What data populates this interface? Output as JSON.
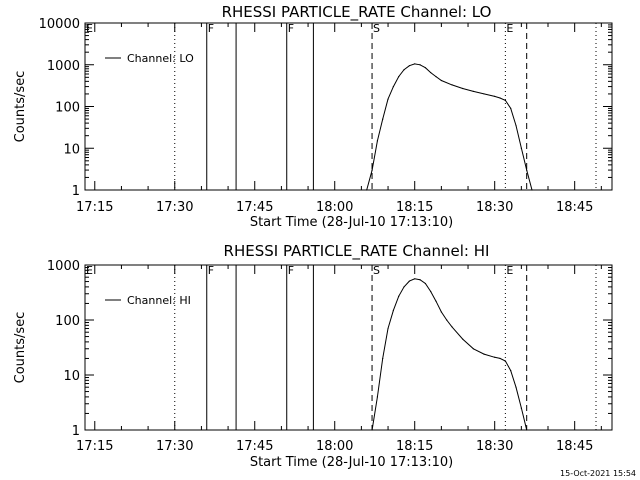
{
  "chart_data": [
    {
      "type": "line",
      "title": "RHESSI PARTICLE_RATE Channel: LO",
      "xlabel": "Start Time (28-Jul-10 17:13:10)",
      "ylabel": "Counts/sec",
      "y_scale": "log",
      "ylim": [
        1,
        10000
      ],
      "y_ticks": [
        "1",
        "10",
        "100",
        "1000",
        "10000"
      ],
      "x_ticks": [
        "17:15",
        "17:30",
        "17:45",
        "18:00",
        "18:15",
        "18:30",
        "18:45"
      ],
      "xlim": [
        "17:13:10",
        "18:52:00"
      ],
      "grid": false,
      "legend_position": "top-left",
      "series": [
        {
          "name": "Channel: LO",
          "x": [
            "18:06",
            "18:07",
            "18:08",
            "18:09",
            "18:10",
            "18:11",
            "18:12",
            "18:13",
            "18:14",
            "18:15",
            "18:16",
            "18:17",
            "18:18",
            "18:19",
            "18:20",
            "18:22",
            "18:24",
            "18:26",
            "18:28",
            "18:30",
            "18:31",
            "18:32",
            "18:33",
            "18:34",
            "18:35",
            "18:36",
            "18:37"
          ],
          "values": [
            1,
            3,
            15,
            50,
            150,
            300,
            520,
            760,
            950,
            1050,
            1000,
            850,
            650,
            520,
            420,
            330,
            270,
            230,
            200,
            175,
            160,
            140,
            90,
            35,
            10,
            3,
            1
          ]
        }
      ],
      "markers": [
        {
          "time": "17:13:10",
          "style": "dotted",
          "label": "E"
        },
        {
          "time": "17:30",
          "style": "dotted",
          "label": ""
        },
        {
          "time": "17:36",
          "style": "solid",
          "label": "F"
        },
        {
          "time": "17:41:30",
          "style": "solid",
          "label": ""
        },
        {
          "time": "17:51",
          "style": "solid",
          "label": "F"
        },
        {
          "time": "17:56",
          "style": "solid",
          "label": ""
        },
        {
          "time": "18:07",
          "style": "dashed",
          "label": "S"
        },
        {
          "time": "18:32",
          "style": "dotted",
          "label": "E"
        },
        {
          "time": "18:36",
          "style": "dashed",
          "label": ""
        },
        {
          "time": "18:49",
          "style": "dotted",
          "label": ""
        }
      ]
    },
    {
      "type": "line",
      "title": "RHESSI PARTICLE_RATE Channel: HI",
      "xlabel": "Start Time (28-Jul-10 17:13:10)",
      "ylabel": "Counts/sec",
      "y_scale": "log",
      "ylim": [
        1,
        1000
      ],
      "y_ticks": [
        "1",
        "10",
        "100",
        "1000"
      ],
      "x_ticks": [
        "17:15",
        "17:30",
        "17:45",
        "18:00",
        "18:15",
        "18:30",
        "18:45"
      ],
      "xlim": [
        "17:13:10",
        "18:52:00"
      ],
      "grid": false,
      "legend_position": "top-left",
      "series": [
        {
          "name": "Channel: HI",
          "x": [
            "18:07",
            "18:08",
            "18:09",
            "18:10",
            "18:11",
            "18:12",
            "18:13",
            "18:14",
            "18:15",
            "18:16",
            "18:17",
            "18:18",
            "18:19",
            "18:20",
            "18:21",
            "18:22",
            "18:24",
            "18:26",
            "18:28",
            "18:30",
            "18:31",
            "18:32",
            "18:33",
            "18:34",
            "18:35",
            "18:36"
          ],
          "values": [
            1,
            4,
            20,
            70,
            150,
            270,
            400,
            510,
            560,
            540,
            460,
            330,
            220,
            140,
            100,
            75,
            45,
            30,
            24,
            21,
            20,
            18,
            12,
            6,
            2.5,
            1
          ]
        }
      ],
      "markers": [
        {
          "time": "17:13:10",
          "style": "dotted",
          "label": "E"
        },
        {
          "time": "17:30",
          "style": "dotted",
          "label": ""
        },
        {
          "time": "17:36",
          "style": "solid",
          "label": "F"
        },
        {
          "time": "17:41:30",
          "style": "solid",
          "label": ""
        },
        {
          "time": "17:51",
          "style": "solid",
          "label": "F"
        },
        {
          "time": "17:56",
          "style": "solid",
          "label": ""
        },
        {
          "time": "18:07",
          "style": "dashed",
          "label": "S"
        },
        {
          "time": "18:32",
          "style": "dotted",
          "label": "E"
        },
        {
          "time": "18:36",
          "style": "dashed",
          "label": ""
        },
        {
          "time": "18:49",
          "style": "dotted",
          "label": ""
        }
      ]
    }
  ],
  "footer": {
    "timestamp": "15-Oct-2021 15:54"
  }
}
